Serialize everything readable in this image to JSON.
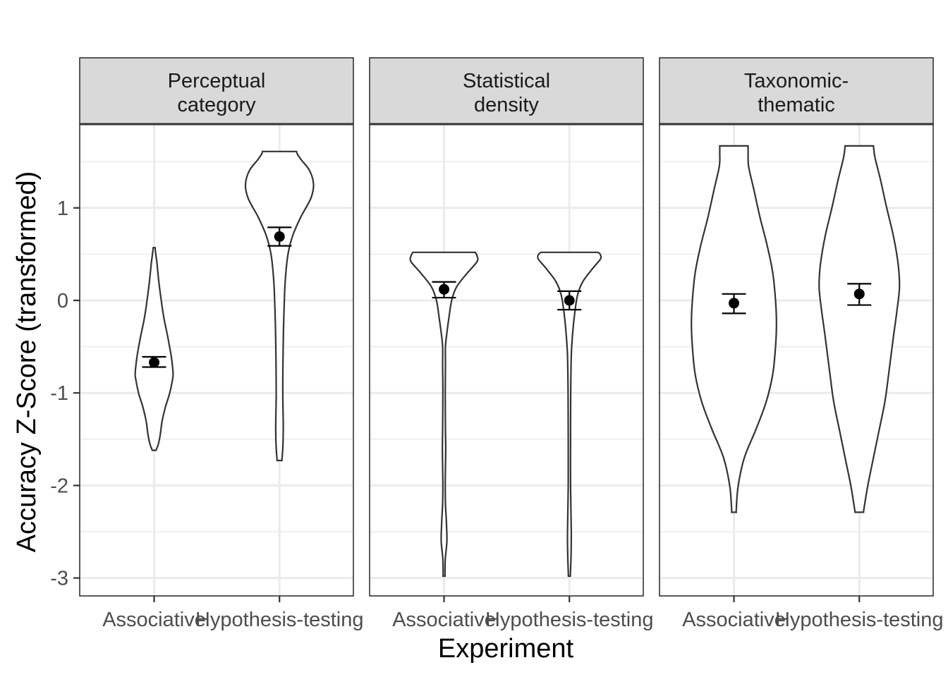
{
  "chart_data": {
    "type": "violin",
    "ylabel": "Accuracy Z-Score (transformed)",
    "xlabel": "Experiment",
    "categories": [
      "Associative",
      "Hypothesis-testing"
    ],
    "ylim": [
      -3.2,
      1.9
    ],
    "y_ticks": [
      {
        "value": 1,
        "label": "1"
      },
      {
        "value": 0,
        "label": "0"
      },
      {
        "value": -1,
        "label": "-1"
      },
      {
        "value": -2,
        "label": "-2"
      },
      {
        "value": -3,
        "label": "-3"
      }
    ],
    "grid": true,
    "panels": [
      {
        "title_lines": [
          "Perceptual",
          "category"
        ],
        "groups": [
          {
            "category": "Associative",
            "mean": -0.67,
            "ci": [
              -0.72,
              -0.61
            ],
            "profile": [
              [
                -1.62,
                0.04
              ],
              [
                -1.55,
                0.09
              ],
              [
                -1.45,
                0.13
              ],
              [
                -1.3,
                0.17
              ],
              [
                -1.15,
                0.24
              ],
              [
                -1.0,
                0.33
              ],
              [
                -0.85,
                0.39
              ],
              [
                -0.78,
                0.4
              ],
              [
                -0.6,
                0.36
              ],
              [
                -0.4,
                0.29
              ],
              [
                -0.2,
                0.21
              ],
              [
                0.0,
                0.15
              ],
              [
                0.2,
                0.1
              ],
              [
                0.4,
                0.06
              ],
              [
                0.52,
                0.03
              ],
              [
                0.57,
                0.02
              ]
            ]
          },
          {
            "category": "Hypothesis-testing",
            "mean": 0.69,
            "ci": [
              0.59,
              0.79
            ],
            "profile": [
              [
                -1.73,
                0.05
              ],
              [
                -1.6,
                0.07
              ],
              [
                -1.4,
                0.08
              ],
              [
                -1.2,
                0.075
              ],
              [
                -1.0,
                0.07
              ],
              [
                -0.6,
                0.075
              ],
              [
                -0.2,
                0.09
              ],
              [
                0.2,
                0.12
              ],
              [
                0.5,
                0.18
              ],
              [
                0.7,
                0.28
              ],
              [
                0.9,
                0.45
              ],
              [
                1.1,
                0.66
              ],
              [
                1.25,
                0.72
              ],
              [
                1.4,
                0.64
              ],
              [
                1.52,
                0.46
              ],
              [
                1.58,
                0.38
              ],
              [
                1.61,
                0.36
              ]
            ]
          }
        ]
      },
      {
        "title_lines": [
          "Statistical",
          "density"
        ],
        "groups": [
          {
            "category": "Associative",
            "mean": 0.12,
            "ci": [
              0.03,
              0.2
            ],
            "profile": [
              [
                -2.98,
                0.02
              ],
              [
                -2.8,
                0.025
              ],
              [
                -2.6,
                0.06
              ],
              [
                -2.4,
                0.05
              ],
              [
                -2.2,
                0.03
              ],
              [
                -2.0,
                0.025
              ],
              [
                -1.8,
                0.03
              ],
              [
                -1.6,
                0.035
              ],
              [
                -1.4,
                0.03
              ],
              [
                -1.0,
                0.025
              ],
              [
                -0.7,
                0.03
              ],
              [
                -0.5,
                0.03
              ],
              [
                -0.35,
                0.06
              ],
              [
                -0.2,
                0.1
              ],
              [
                0.0,
                0.16
              ],
              [
                0.15,
                0.27
              ],
              [
                0.3,
                0.5
              ],
              [
                0.42,
                0.7
              ],
              [
                0.48,
                0.7
              ],
              [
                0.52,
                0.66
              ]
            ]
          },
          {
            "category": "Hypothesis-testing",
            "mean": 0.0,
            "ci": [
              -0.1,
              0.1
            ],
            "profile": [
              [
                -2.98,
                0.02
              ],
              [
                -2.75,
                0.035
              ],
              [
                -2.5,
                0.04
              ],
              [
                -2.0,
                0.025
              ],
              [
                -1.5,
                0.025
              ],
              [
                -1.0,
                0.028
              ],
              [
                -0.6,
                0.04
              ],
              [
                -0.35,
                0.07
              ],
              [
                -0.15,
                0.11
              ],
              [
                0.05,
                0.17
              ],
              [
                0.2,
                0.28
              ],
              [
                0.35,
                0.5
              ],
              [
                0.45,
                0.66
              ],
              [
                0.5,
                0.65
              ],
              [
                0.52,
                0.6
              ]
            ]
          }
        ]
      },
      {
        "title_lines": [
          "Taxonomic-",
          "thematic"
        ],
        "groups": [
          {
            "category": "Associative",
            "mean": -0.03,
            "ci": [
              -0.14,
              0.07
            ],
            "profile": [
              [
                -2.29,
                0.05
              ],
              [
                -2.25,
                0.05
              ],
              [
                -2.0,
                0.09
              ],
              [
                -1.7,
                0.22
              ],
              [
                -1.4,
                0.46
              ],
              [
                -1.1,
                0.68
              ],
              [
                -0.8,
                0.82
              ],
              [
                -0.5,
                0.88
              ],
              [
                -0.25,
                0.9
              ],
              [
                0.0,
                0.88
              ],
              [
                0.3,
                0.82
              ],
              [
                0.6,
                0.7
              ],
              [
                0.9,
                0.55
              ],
              [
                1.2,
                0.42
              ],
              [
                1.45,
                0.31
              ],
              [
                1.6,
                0.3
              ],
              [
                1.67,
                0.3
              ]
            ]
          },
          {
            "category": "Hypothesis-testing",
            "mean": 0.07,
            "ci": [
              -0.05,
              0.18
            ],
            "profile": [
              [
                -2.29,
                0.09
              ],
              [
                -2.25,
                0.1
              ],
              [
                -2.0,
                0.18
              ],
              [
                -1.7,
                0.3
              ],
              [
                -1.4,
                0.42
              ],
              [
                -1.1,
                0.54
              ],
              [
                -0.8,
                0.62
              ],
              [
                -0.4,
                0.72
              ],
              [
                -0.1,
                0.8
              ],
              [
                0.15,
                0.85
              ],
              [
                0.4,
                0.82
              ],
              [
                0.7,
                0.72
              ],
              [
                1.0,
                0.58
              ],
              [
                1.3,
                0.45
              ],
              [
                1.55,
                0.33
              ],
              [
                1.67,
                0.3
              ]
            ]
          }
        ]
      }
    ]
  }
}
